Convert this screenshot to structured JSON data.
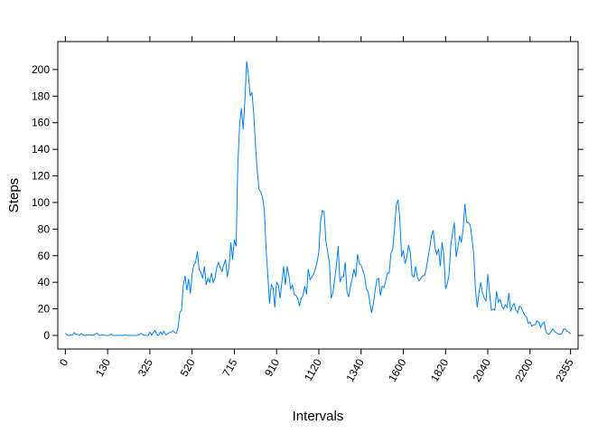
{
  "chart_data": {
    "type": "line",
    "x_label": "Intervals",
    "y_label": "Steps",
    "color": "#0080ff",
    "values": [
      1.7,
      0.3,
      0.1,
      0.2,
      0.1,
      2.1,
      0.5,
      0.9,
      0,
      1.5,
      0.3,
      0.1,
      0.3,
      0.7,
      0.2,
      0.3,
      0,
      1.1,
      1.8,
      0.2,
      0.2,
      0.4,
      0.3,
      0,
      0,
      0,
      1.1,
      0,
      0,
      0.1,
      0,
      0.2,
      0,
      0,
      0.4,
      0,
      0,
      0,
      0,
      0,
      0,
      0.2,
      0.6,
      1.6,
      0.6,
      0.2,
      0,
      0,
      2.5,
      0.3,
      2.3,
      3.7,
      0.5,
      0.1,
      2.6,
      0.8,
      3.2,
      0.3,
      1.1,
      2.2,
      2.1,
      3.6,
      2.3,
      1.5,
      5.4,
      17.3,
      19,
      37.6,
      44.8,
      34,
      42.5,
      31.5,
      46,
      53,
      55,
      63,
      50,
      47,
      43,
      52,
      38,
      43,
      40,
      47,
      40,
      43,
      51,
      55,
      51,
      48,
      53,
      57,
      44,
      52,
      70,
      57,
      72,
      67,
      129,
      158,
      171,
      155,
      177,
      206.2,
      196,
      180,
      183,
      167,
      143,
      124,
      110,
      108,
      104,
      95,
      66,
      45,
      24,
      38,
      36,
      21,
      40,
      38,
      28,
      40,
      52,
      38,
      52,
      45,
      35,
      38,
      31,
      30,
      28,
      22,
      28,
      30,
      37,
      31,
      50,
      42,
      44,
      46,
      50,
      55,
      63,
      86,
      94,
      93,
      71,
      63,
      55,
      28,
      32,
      42,
      53,
      67,
      40,
      44,
      44,
      55,
      33,
      29,
      37,
      43,
      50,
      44,
      61,
      54,
      53,
      49,
      45,
      35,
      33,
      25,
      17,
      24,
      34,
      42,
      43,
      30,
      37,
      36,
      41,
      47,
      47,
      62,
      65,
      80,
      98,
      102,
      88,
      59,
      64,
      54,
      59,
      68,
      62,
      45,
      44,
      52,
      44,
      41,
      43,
      45,
      45,
      50,
      58,
      66,
      75,
      79,
      66,
      61,
      65,
      52,
      70,
      61,
      35,
      39,
      46,
      68,
      77,
      85,
      59,
      66,
      75,
      70,
      80,
      99,
      85,
      85,
      83,
      73,
      61,
      34,
      21,
      32,
      40,
      32,
      28,
      26,
      46,
      33,
      19,
      20,
      19,
      33,
      25,
      27,
      22,
      20,
      23,
      21,
      32,
      18,
      22,
      24,
      19,
      17,
      22,
      21,
      18,
      15,
      14,
      9,
      10,
      7,
      8,
      8,
      11,
      10,
      6,
      9,
      10,
      3,
      1,
      1,
      3,
      5,
      3,
      2,
      1,
      0.7,
      1.2,
      4.5,
      5,
      3,
      2.6,
      1.1
    ],
    "xlim": [
      -4.3,
      291.3
    ],
    "xticks": [
      {
        "value": 0,
        "label": "0"
      },
      {
        "value": 24,
        "label": "130"
      },
      {
        "value": 48,
        "label": "325"
      },
      {
        "value": 72,
        "label": "520"
      },
      {
        "value": 96,
        "label": "715"
      },
      {
        "value": 120,
        "label": "910"
      },
      {
        "value": 144,
        "label": "1120"
      },
      {
        "value": 168,
        "label": "1340"
      },
      {
        "value": 192,
        "label": "1600"
      },
      {
        "value": 216,
        "label": "1820"
      },
      {
        "value": 240,
        "label": "2040"
      },
      {
        "value": 264,
        "label": "2200"
      },
      {
        "value": 287,
        "label": "2355"
      }
    ],
    "ylim": [
      -10.2,
      221
    ],
    "yticks": [
      0,
      20,
      40,
      60,
      80,
      100,
      120,
      140,
      160,
      180,
      200
    ]
  }
}
